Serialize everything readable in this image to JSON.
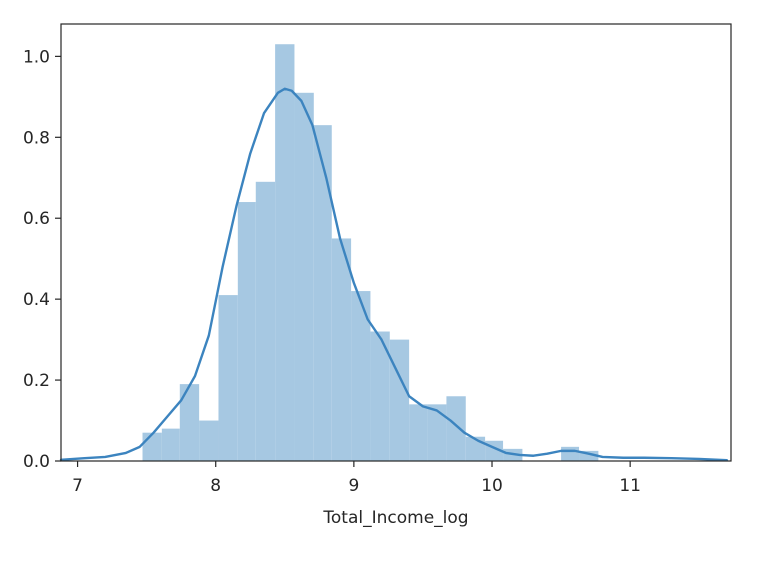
{
  "chart_data": {
    "type": "histogram",
    "title": "",
    "xlabel": "Total_Income_log",
    "ylabel": "",
    "xlim": [
      6.88,
      11.73
    ],
    "ylim": [
      0,
      1.08
    ],
    "grid": false,
    "legend": "none",
    "xticks": [
      7,
      8,
      9,
      10,
      11
    ],
    "xtick_labels": [
      "7",
      "8",
      "9",
      "10",
      "11"
    ],
    "yticks": [
      0,
      0.2,
      0.4,
      0.6,
      0.8,
      1.0
    ],
    "ytick_labels": [
      "0.0",
      "0.2",
      "0.4",
      "0.6",
      "0.8",
      "1.0"
    ],
    "bar_color": "#a6c8e2",
    "line_color": "#3c84bf",
    "bins": [
      {
        "x0": 7.47,
        "x1": 7.61,
        "density": 0.07
      },
      {
        "x0": 7.61,
        "x1": 7.74,
        "density": 0.08
      },
      {
        "x0": 7.74,
        "x1": 7.88,
        "density": 0.19
      },
      {
        "x0": 7.88,
        "x1": 8.02,
        "density": 0.1
      },
      {
        "x0": 8.02,
        "x1": 8.16,
        "density": 0.41
      },
      {
        "x0": 8.16,
        "x1": 8.29,
        "density": 0.64
      },
      {
        "x0": 8.29,
        "x1": 8.43,
        "density": 0.69
      },
      {
        "x0": 8.43,
        "x1": 8.57,
        "density": 1.03
      },
      {
        "x0": 8.57,
        "x1": 8.71,
        "density": 0.91
      },
      {
        "x0": 8.71,
        "x1": 8.84,
        "density": 0.83
      },
      {
        "x0": 8.84,
        "x1": 8.98,
        "density": 0.55
      },
      {
        "x0": 8.98,
        "x1": 9.12,
        "density": 0.42
      },
      {
        "x0": 9.12,
        "x1": 9.26,
        "density": 0.32
      },
      {
        "x0": 9.26,
        "x1": 9.4,
        "density": 0.3
      },
      {
        "x0": 9.4,
        "x1": 9.53,
        "density": 0.14
      },
      {
        "x0": 9.53,
        "x1": 9.67,
        "density": 0.14
      },
      {
        "x0": 9.67,
        "x1": 9.81,
        "density": 0.16
      },
      {
        "x0": 9.81,
        "x1": 9.95,
        "density": 0.06
      },
      {
        "x0": 9.95,
        "x1": 10.08,
        "density": 0.05
      },
      {
        "x0": 10.08,
        "x1": 10.22,
        "density": 0.03
      },
      {
        "x0": 10.22,
        "x1": 10.36,
        "density": 0.0
      },
      {
        "x0": 10.36,
        "x1": 10.5,
        "density": 0.0
      },
      {
        "x0": 10.5,
        "x1": 10.63,
        "density": 0.035
      },
      {
        "x0": 10.63,
        "x1": 10.77,
        "density": 0.025
      }
    ],
    "kde": {
      "x": [
        6.88,
        7.05,
        7.2,
        7.35,
        7.45,
        7.55,
        7.65,
        7.75,
        7.85,
        7.95,
        8.05,
        8.15,
        8.25,
        8.35,
        8.45,
        8.5,
        8.55,
        8.62,
        8.7,
        8.8,
        8.9,
        9.0,
        9.1,
        9.2,
        9.3,
        9.4,
        9.5,
        9.6,
        9.7,
        9.8,
        9.9,
        10.0,
        10.1,
        10.2,
        10.3,
        10.4,
        10.5,
        10.6,
        10.7,
        10.8,
        10.95,
        11.1,
        11.3,
        11.5,
        11.7
      ],
      "y": [
        0.003,
        0.007,
        0.01,
        0.02,
        0.035,
        0.07,
        0.11,
        0.15,
        0.21,
        0.31,
        0.48,
        0.63,
        0.76,
        0.86,
        0.91,
        0.92,
        0.915,
        0.89,
        0.83,
        0.7,
        0.55,
        0.44,
        0.35,
        0.3,
        0.23,
        0.16,
        0.135,
        0.125,
        0.1,
        0.07,
        0.05,
        0.035,
        0.02,
        0.015,
        0.013,
        0.018,
        0.025,
        0.025,
        0.018,
        0.01,
        0.008,
        0.008,
        0.007,
        0.005,
        0.002
      ]
    }
  }
}
